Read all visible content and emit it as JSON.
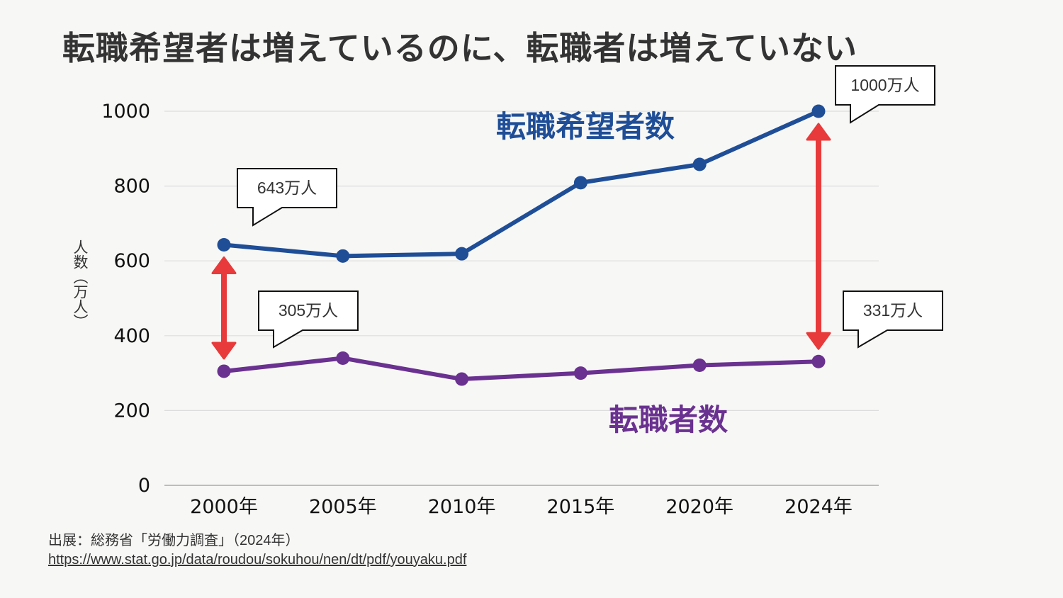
{
  "title": "転職希望者は増えているのに、転職者は増えていない",
  "chart_data": {
    "type": "line",
    "title": "転職希望者は増えているのに、転職者は増えていない",
    "xlabel": "",
    "ylabel": "人数（万人）",
    "categories": [
      "2000年",
      "2005年",
      "2010年",
      "2015年",
      "2020年",
      "2024年"
    ],
    "ylim": [
      0,
      1000
    ],
    "yticks": [
      0,
      200,
      400,
      600,
      800,
      1000
    ],
    "grid": true,
    "series": [
      {
        "name": "転職希望者数",
        "color": "#1f4e97",
        "values": [
          643,
          613,
          619,
          809,
          858,
          1000
        ]
      },
      {
        "name": "転職者数",
        "color": "#6a3190",
        "values": [
          305,
          340,
          284,
          300,
          321,
          331
        ]
      }
    ],
    "callouts": [
      {
        "series": 0,
        "index": 0,
        "text": "643万人"
      },
      {
        "series": 1,
        "index": 0,
        "text": "305万人"
      },
      {
        "series": 0,
        "index": 5,
        "text": "1000万人"
      },
      {
        "series": 1,
        "index": 5,
        "text": "331万人"
      }
    ],
    "gap_arrows": [
      {
        "index": 0,
        "color": "#e83a3a"
      },
      {
        "index": 5,
        "color": "#e83a3a"
      }
    ]
  },
  "source": {
    "label": "出展：総務省「労働力調査」（2024年）",
    "url_text": "https://www.stat.go.jp/data/roudou/sokuhou/nen/dt/pdf/youyaku.pdf"
  }
}
